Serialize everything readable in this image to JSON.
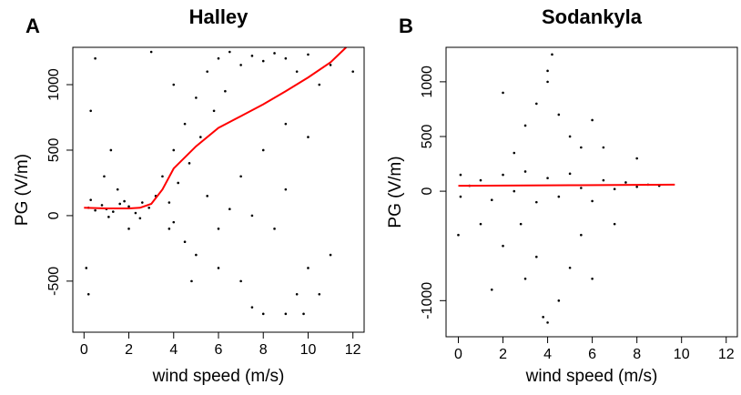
{
  "chart_data": [
    {
      "type": "scatter",
      "panel": "A",
      "title": "Halley",
      "xlabel": "wind speed (m/s)",
      "ylabel": "PG (V/m)",
      "xlim": [
        -0.5,
        12.5
      ],
      "ylim": [
        -890,
        1285
      ],
      "xticks": [
        0,
        2,
        4,
        6,
        8,
        10,
        12
      ],
      "yticks": [
        -500,
        0,
        500,
        1000
      ],
      "series": [
        {
          "marker": "dot",
          "color": "#000000",
          "x": [
            0.2,
            0.5,
            0.8,
            1,
            1.3,
            1.6,
            2,
            2.3,
            2.6,
            2.9,
            0.3,
            1.1,
            1.8,
            2.5,
            3.2,
            3.5,
            3.8,
            4,
            4.2,
            4.5,
            4.7,
            5,
            5.2,
            5.5,
            5.8,
            6,
            6.3,
            6.5,
            7,
            7.5,
            8,
            8.5,
            9,
            9.5,
            10,
            10.5,
            11,
            12,
            0.3,
            0.5,
            1.2,
            0.9,
            0.1,
            0.2,
            3.8,
            4.5,
            5,
            6,
            7,
            7.5,
            8,
            9,
            9.5,
            10,
            8.5,
            9,
            10,
            11,
            6.5,
            7,
            8,
            9,
            4,
            5.5,
            2,
            3,
            4,
            6,
            7.5,
            9.8,
            1.5,
            4.8,
            10.5
          ],
          "values": [
            60,
            40,
            80,
            50,
            30,
            90,
            70,
            20,
            100,
            60,
            120,
            -10,
            110,
            -20,
            150,
            300,
            100,
            500,
            250,
            700,
            400,
            900,
            600,
            1100,
            800,
            1200,
            950,
            1250,
            1150,
            1220,
            1180,
            1240,
            1200,
            1100,
            1230,
            1000,
            1150,
            1100,
            800,
            1200,
            500,
            300,
            -400,
            -600,
            -100,
            -200,
            -300,
            -400,
            -500,
            -700,
            -750,
            -750,
            -600,
            -400,
            -100,
            200,
            600,
            -300,
            50,
            300,
            500,
            700,
            -50,
            150,
            -100,
            1250,
            1000,
            -100,
            0,
            -750,
            200,
            -500,
            -600
          ]
        },
        {
          "marker": "line",
          "color": "#ff0000",
          "x": [
            0,
            1,
            2,
            2.5,
            3,
            3.5,
            4,
            5,
            6,
            7,
            8,
            9,
            10,
            11,
            11.7
          ],
          "values": [
            60,
            55,
            55,
            60,
            90,
            200,
            360,
            530,
            670,
            760,
            850,
            950,
            1055,
            1170,
            1285
          ]
        }
      ]
    },
    {
      "type": "scatter",
      "panel": "B",
      "title": "Sodankyla",
      "xlabel": "wind speed (m/s)",
      "ylabel": "PG (V/m)",
      "xlim": [
        -0.55,
        12.5
      ],
      "ylim": [
        -1330,
        1315
      ],
      "xticks": [
        0,
        2,
        4,
        6,
        8,
        10,
        12
      ],
      "yticks": [
        -1000,
        0,
        500,
        1000
      ],
      "series": [
        {
          "marker": "dot",
          "color": "#000000",
          "x": [
            0.5,
            1,
            1.5,
            2,
            2.5,
            3,
            3.5,
            4,
            4.5,
            5,
            5.5,
            6,
            6.5,
            7,
            7.5,
            8,
            8.5,
            9,
            0.1,
            0.1,
            3,
            3.5,
            4,
            4.2,
            4.5,
            5,
            5.5,
            6,
            2.5,
            2,
            3,
            4,
            4.5,
            3.5,
            5,
            6,
            2.8,
            1.5,
            5.5,
            4,
            3.8,
            1,
            0,
            7,
            6.5,
            8,
            2
          ],
          "values": [
            50,
            100,
            -80,
            150,
            0,
            180,
            -100,
            120,
            -50,
            160,
            30,
            -90,
            100,
            20,
            80,
            40,
            60,
            50,
            150,
            -50,
            600,
            800,
            1000,
            1250,
            700,
            500,
            400,
            650,
            350,
            -500,
            -800,
            -1200,
            -1000,
            -600,
            -700,
            -800,
            -300,
            -900,
            -400,
            1100,
            -1150,
            -300,
            -400,
            -300,
            400,
            300,
            900
          ]
        },
        {
          "marker": "line",
          "color": "#ff0000",
          "x": [
            0,
            5,
            9.7
          ],
          "values": [
            50,
            55,
            60
          ]
        }
      ]
    }
  ]
}
